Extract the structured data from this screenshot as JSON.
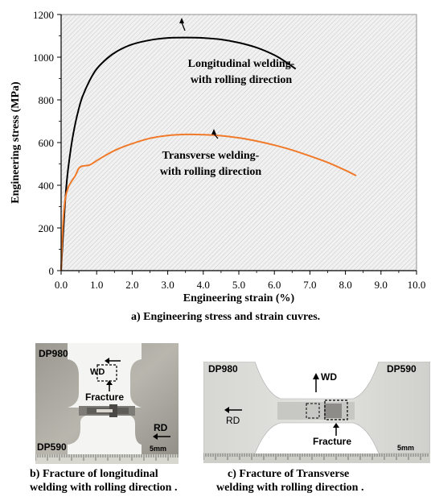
{
  "chart_data": {
    "type": "line",
    "xlabel": "Engineering strain (%)",
    "ylabel": "Engineering stress (MPa)",
    "xlim": [
      0,
      10
    ],
    "ylim": [
      0,
      1200
    ],
    "xticks": [
      "0.0",
      "1.0",
      "2.0",
      "3.0",
      "4.0",
      "5.0",
      "6.0",
      "7.0",
      "8.0",
      "9.0",
      "10.0"
    ],
    "yticks": [
      "0",
      "200",
      "400",
      "600",
      "800",
      "1000",
      "1200"
    ],
    "grid": "hatched background",
    "series": [
      {
        "color": "#000000",
        "x": [
          0,
          0.05,
          0.1,
          0.15,
          0.2,
          0.3,
          0.4,
          0.5,
          0.6,
          0.8,
          1.0,
          1.3,
          1.6,
          2.0,
          2.5,
          3.0,
          3.5,
          4.0,
          4.5,
          5.0,
          5.5,
          6.0,
          6.3,
          6.6
        ],
        "y": [
          0,
          150,
          290,
          400,
          480,
          600,
          690,
          760,
          815,
          890,
          945,
          995,
          1030,
          1060,
          1080,
          1090,
          1092,
          1090,
          1083,
          1068,
          1045,
          1010,
          980,
          945
        ]
      },
      {
        "color": "#f07a2a",
        "x": [
          0,
          0.03,
          0.07,
          0.12,
          0.2,
          0.3,
          0.4,
          0.5,
          0.6,
          0.8,
          1.0,
          1.3,
          1.6,
          2.0,
          2.5,
          3.0,
          3.5,
          4.0,
          4.5,
          5.0,
          5.5,
          6.0,
          6.5,
          7.0,
          7.5,
          8.0,
          8.3
        ],
        "y": [
          0,
          140,
          260,
          340,
          390,
          420,
          445,
          480,
          490,
          495,
          515,
          545,
          570,
          595,
          620,
          633,
          638,
          637,
          632,
          622,
          607,
          588,
          565,
          537,
          507,
          470,
          445
        ]
      }
    ],
    "annotations": [
      {
        "text": [
          "Longitudinal welding-",
          "with rolling direction"
        ],
        "point": [
          4.22,
          1085
        ]
      },
      {
        "text": [
          "Transverse welding-",
          "with rolling direction"
        ],
        "point": [
          4.85,
          625
        ]
      }
    ],
    "caption": "a) Engineering stress and strain cuvres."
  },
  "photos": {
    "b": {
      "labels": {
        "top": "DP980",
        "bottom": "DP590",
        "wd": "WD",
        "fracture": "Fracture",
        "rd": "RD",
        "scale": "5mm"
      },
      "caption": [
        "b) Fracture of longitudinal",
        "welding with rolling direction ."
      ]
    },
    "c": {
      "labels": {
        "left": "DP980",
        "right": "DP590",
        "wd": "WD",
        "fracture": "Fracture",
        "rd": "RD",
        "scale": "5mm"
      },
      "caption": [
        "c) Fracture of Transverse",
        "welding with rolling direction ."
      ]
    }
  },
  "colors": {
    "orange_series": "#f07a2a",
    "black_series": "#000000"
  }
}
